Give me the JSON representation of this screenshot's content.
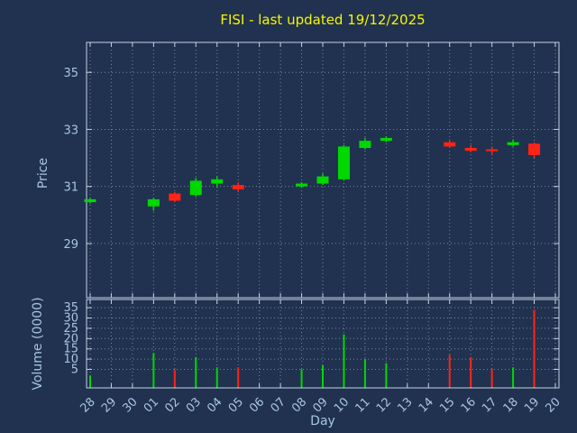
{
  "chart_data": {
    "type": "candlestick",
    "title": "FISI - last updated 19/12/2025",
    "xlabel": "Day",
    "x_categories": [
      "28",
      "29",
      "30",
      "01",
      "02",
      "03",
      "04",
      "05",
      "06",
      "07",
      "08",
      "09",
      "10",
      "11",
      "12",
      "13",
      "14",
      "15",
      "16",
      "17",
      "18",
      "19",
      "20"
    ],
    "grid": "dotted",
    "legend_position": "none",
    "price_panel": {
      "ylabel": "Price",
      "y_ticks": [
        29,
        31,
        33,
        35
      ],
      "ylim": [
        27.1,
        36.05
      ],
      "candles": [
        {
          "day": "28",
          "open": 30.45,
          "high": 30.6,
          "low": 30.4,
          "close": 30.55,
          "volume": 2
        },
        {
          "day": "01",
          "open": 30.3,
          "high": 30.6,
          "low": 30.15,
          "close": 30.55,
          "volume": 13
        },
        {
          "day": "02",
          "open": 30.75,
          "high": 30.8,
          "low": 30.45,
          "close": 30.5,
          "volume": 5
        },
        {
          "day": "03",
          "open": 30.7,
          "high": 31.3,
          "low": 30.65,
          "close": 31.2,
          "volume": 11
        },
        {
          "day": "04",
          "open": 31.1,
          "high": 31.35,
          "low": 30.95,
          "close": 31.25,
          "volume": 6
        },
        {
          "day": "05",
          "open": 31.05,
          "high": 31.15,
          "low": 30.8,
          "close": 30.9,
          "volume": 6
        },
        {
          "day": "08",
          "open": 31.0,
          "high": 31.15,
          "low": 30.95,
          "close": 31.1,
          "volume": 5
        },
        {
          "day": "09",
          "open": 31.1,
          "high": 31.45,
          "low": 31.05,
          "close": 31.35,
          "volume": 7
        },
        {
          "day": "10",
          "open": 31.25,
          "high": 32.45,
          "low": 31.2,
          "close": 32.4,
          "volume": 22
        },
        {
          "day": "11",
          "open": 32.35,
          "high": 32.7,
          "low": 32.3,
          "close": 32.6,
          "volume": 10
        },
        {
          "day": "12",
          "open": 32.6,
          "high": 32.75,
          "low": 32.55,
          "close": 32.7,
          "volume": 8
        },
        {
          "day": "15",
          "open": 32.55,
          "high": 32.65,
          "low": 32.35,
          "close": 32.4,
          "volume": 12
        },
        {
          "day": "16",
          "open": 32.35,
          "high": 32.45,
          "low": 32.2,
          "close": 32.25,
          "volume": 11
        },
        {
          "day": "17",
          "open": 32.3,
          "high": 32.4,
          "low": 32.1,
          "close": 32.25,
          "volume": 5
        },
        {
          "day": "18",
          "open": 32.45,
          "high": 32.65,
          "low": 32.4,
          "close": 32.55,
          "volume": 6
        },
        {
          "day": "19",
          "open": 32.5,
          "high": 32.55,
          "low": 32.0,
          "close": 32.1,
          "volume": 34
        }
      ]
    },
    "volume_panel": {
      "ylabel": "Volume (0000)",
      "y_ticks": [
        5,
        10,
        15,
        20,
        25,
        30,
        35
      ],
      "ylim": [
        -4,
        39
      ]
    },
    "colors": {
      "background": "#20324f",
      "title": "#f5f500",
      "text": "#a9c4e4",
      "axis": "#c3d2e6",
      "grid": "#76879f",
      "up": "#00d800",
      "down": "#ff2416"
    }
  }
}
